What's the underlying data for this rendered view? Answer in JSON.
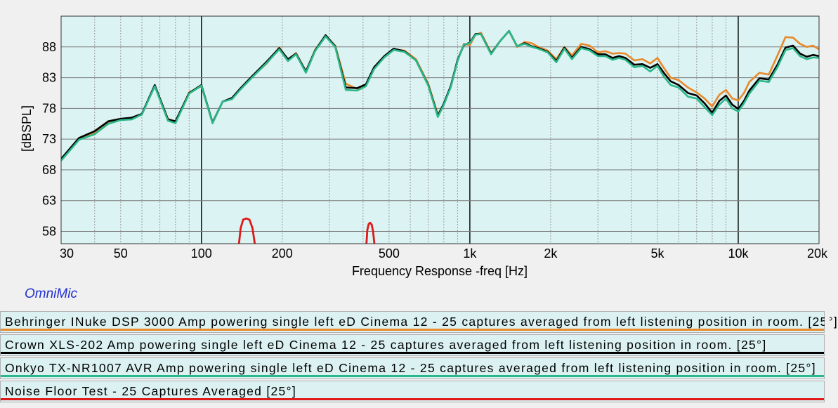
{
  "app": {
    "brand": "OmniMic"
  },
  "chart_data": {
    "type": "line",
    "xscale": "log",
    "xlim": [
      30,
      20000
    ],
    "ylim": [
      56,
      93
    ],
    "xlabel": "Frequency Response -freq [Hz]",
    "ylabel": "[dBSPL]",
    "grid": true,
    "background": "#dcf3f3",
    "x_ticks": [
      {
        "v": 30,
        "label": "30"
      },
      {
        "v": 50,
        "label": "50"
      },
      {
        "v": 100,
        "label": "100"
      },
      {
        "v": 200,
        "label": "200"
      },
      {
        "v": 500,
        "label": "500"
      },
      {
        "v": 1000,
        "label": "1k"
      },
      {
        "v": 2000,
        "label": "2k"
      },
      {
        "v": 5000,
        "label": "5k"
      },
      {
        "v": 10000,
        "label": "10k"
      },
      {
        "v": 20000,
        "label": "20k"
      }
    ],
    "y_ticks": [
      {
        "v": 58,
        "label": "58"
      },
      {
        "v": 63,
        "label": "63"
      },
      {
        "v": 68,
        "label": "68"
      },
      {
        "v": 73,
        "label": "73"
      },
      {
        "v": 78,
        "label": "78"
      },
      {
        "v": 83,
        "label": "83"
      },
      {
        "v": 88,
        "label": "88"
      }
    ],
    "series": [
      {
        "name": "Behringer INuke DSP 3000 Amp powering single left eD Cinema 12 - 25 captures averaged from left listening position in room. [25°]",
        "color": "#e8892a",
        "x": [
          30,
          35,
          40,
          45,
          50,
          55,
          60,
          67,
          75,
          80,
          90,
          100,
          110,
          120,
          130,
          140,
          155,
          175,
          195,
          210,
          225,
          245,
          265,
          290,
          315,
          345,
          380,
          410,
          440,
          480,
          520,
          570,
          630,
          700,
          760,
          800,
          850,
          900,
          950,
          1000,
          1050,
          1100,
          1200,
          1300,
          1400,
          1500,
          1600,
          1700,
          1800,
          1950,
          2100,
          2250,
          2400,
          2600,
          2800,
          3000,
          3200,
          3400,
          3600,
          3800,
          4100,
          4400,
          4700,
          5000,
          5300,
          5600,
          6000,
          6500,
          7000,
          7500,
          8000,
          8500,
          9000,
          9500,
          10000,
          10500,
          11000,
          12000,
          13000,
          14000,
          15000,
          16000,
          17000,
          18000,
          19000,
          20000
        ],
        "values": [
          69.6,
          73.0,
          74.0,
          75.8,
          76.2,
          76.3,
          77.0,
          81.7,
          76.3,
          75.8,
          80.6,
          81.6,
          75.6,
          79.1,
          79.6,
          81.2,
          83.2,
          85.3,
          87.9,
          85.9,
          87.0,
          84.0,
          87.5,
          89.8,
          88.2,
          82.0,
          81.2,
          81.8,
          84.5,
          86.3,
          87.6,
          87.4,
          86.0,
          82.0,
          77.0,
          78.7,
          81.6,
          85.8,
          88.5,
          88.3,
          90.0,
          90.3,
          87.0,
          89.0,
          90.6,
          88.0,
          88.8,
          88.6,
          88.0,
          87.4,
          86.0,
          88.0,
          86.6,
          88.5,
          88.2,
          87.1,
          87.3,
          86.9,
          87.0,
          86.9,
          85.8,
          86.0,
          85.3,
          86.2,
          84.5,
          83.0,
          82.6,
          81.4,
          80.6,
          79.6,
          78.3,
          80.2,
          81.0,
          79.6,
          79.3,
          80.5,
          82.3,
          83.8,
          83.5,
          86.6,
          89.6,
          89.5,
          88.5,
          88.0,
          88.2,
          87.6
        ]
      },
      {
        "name": "Crown XLS-202 Amp powering single left eD Cinema 12 - 25 captures averaged from left listening position in room. [25°]",
        "color": "#000000",
        "x": [
          30,
          35,
          40,
          45,
          50,
          55,
          60,
          67,
          75,
          80,
          90,
          100,
          110,
          120,
          130,
          140,
          155,
          175,
          195,
          210,
          225,
          245,
          265,
          290,
          315,
          345,
          380,
          410,
          440,
          480,
          520,
          570,
          630,
          700,
          760,
          800,
          850,
          900,
          950,
          1000,
          1050,
          1100,
          1200,
          1300,
          1400,
          1500,
          1600,
          1700,
          1800,
          1950,
          2100,
          2250,
          2400,
          2600,
          2800,
          3000,
          3200,
          3400,
          3600,
          3800,
          4100,
          4400,
          4700,
          5000,
          5300,
          5600,
          6000,
          6500,
          7000,
          7500,
          8000,
          8500,
          9000,
          9500,
          10000,
          10500,
          11000,
          12000,
          13000,
          14000,
          15000,
          16000,
          17000,
          18000,
          19000,
          20000
        ],
        "values": [
          69.8,
          73.2,
          74.3,
          75.9,
          76.3,
          76.5,
          77.1,
          81.8,
          76.2,
          75.9,
          80.5,
          81.8,
          75.7,
          79.1,
          79.7,
          81.3,
          83.3,
          85.6,
          87.8,
          86.0,
          86.9,
          84.0,
          87.4,
          89.9,
          88.1,
          81.4,
          81.3,
          81.9,
          84.7,
          86.5,
          87.7,
          87.3,
          85.8,
          81.8,
          76.8,
          78.8,
          81.7,
          85.9,
          88.3,
          88.7,
          90.1,
          90.1,
          86.9,
          89.0,
          90.6,
          88.1,
          88.6,
          88.1,
          87.8,
          87.2,
          85.7,
          87.9,
          86.2,
          88.0,
          87.6,
          86.8,
          86.8,
          86.2,
          86.5,
          86.2,
          85.1,
          85.2,
          84.6,
          85.2,
          83.7,
          82.4,
          81.8,
          80.5,
          80.1,
          78.8,
          77.3,
          79.2,
          80.1,
          78.6,
          77.9,
          79.2,
          80.9,
          82.9,
          82.7,
          85.1,
          87.9,
          88.2,
          86.9,
          86.4,
          86.7,
          86.5
        ]
      },
      {
        "name": "Onkyo TX-NR1007 AVR Amp powering single left eD Cinema 12 - 25 captures averaged from left listening position in room. [25°]",
        "color": "#2ab88a",
        "x": [
          30,
          35,
          40,
          45,
          50,
          55,
          60,
          67,
          75,
          80,
          90,
          100,
          110,
          120,
          130,
          140,
          155,
          175,
          195,
          210,
          225,
          245,
          265,
          290,
          315,
          345,
          380,
          410,
          440,
          480,
          520,
          570,
          630,
          700,
          760,
          800,
          850,
          900,
          950,
          1000,
          1050,
          1100,
          1200,
          1300,
          1400,
          1500,
          1600,
          1700,
          1800,
          1950,
          2100,
          2250,
          2400,
          2600,
          2800,
          3000,
          3200,
          3400,
          3600,
          3800,
          4100,
          4400,
          4700,
          5000,
          5300,
          5600,
          6000,
          6500,
          7000,
          7500,
          8000,
          8500,
          9000,
          9500,
          10000,
          10500,
          11000,
          12000,
          13000,
          14000,
          15000,
          16000,
          17000,
          18000,
          19000,
          20000
        ],
        "values": [
          69.5,
          72.9,
          73.8,
          75.5,
          76.1,
          76.2,
          77.0,
          81.6,
          76.0,
          75.6,
          80.4,
          81.7,
          75.6,
          79.1,
          79.5,
          81.1,
          83.1,
          85.4,
          87.6,
          85.7,
          86.8,
          83.8,
          87.3,
          89.7,
          88.0,
          81.0,
          80.9,
          81.6,
          84.4,
          86.3,
          87.5,
          87.2,
          85.8,
          81.7,
          76.6,
          78.6,
          81.5,
          85.7,
          88.4,
          88.6,
          90.0,
          90.1,
          86.8,
          89.0,
          90.6,
          88.1,
          88.5,
          88.0,
          87.7,
          87.1,
          85.5,
          87.7,
          86.0,
          87.8,
          87.4,
          86.5,
          86.5,
          85.9,
          86.2,
          85.9,
          84.7,
          84.9,
          84.0,
          84.9,
          83.1,
          81.8,
          81.4,
          79.9,
          79.6,
          78.2,
          76.9,
          78.6,
          79.6,
          78.0,
          77.5,
          78.8,
          80.4,
          82.5,
          82.3,
          84.7,
          87.5,
          87.8,
          86.5,
          86.0,
          86.3,
          86.2
        ]
      },
      {
        "name": "Noise Floor Test - 25 Captures Averaged [25°]",
        "color": "#e01818",
        "segments": [
          {
            "x": [
              138,
              140,
              143,
              147,
              151,
              155,
              158
            ],
            "values": [
              56,
              58.5,
              59.9,
              60.1,
              59.9,
              58.5,
              56
            ]
          },
          {
            "x": [
              412,
              415,
              420,
              425,
              431,
              436,
              441
            ],
            "values": [
              56,
              58.2,
              59.2,
              59.4,
              59.1,
              58.0,
              56
            ]
          }
        ]
      }
    ]
  }
}
